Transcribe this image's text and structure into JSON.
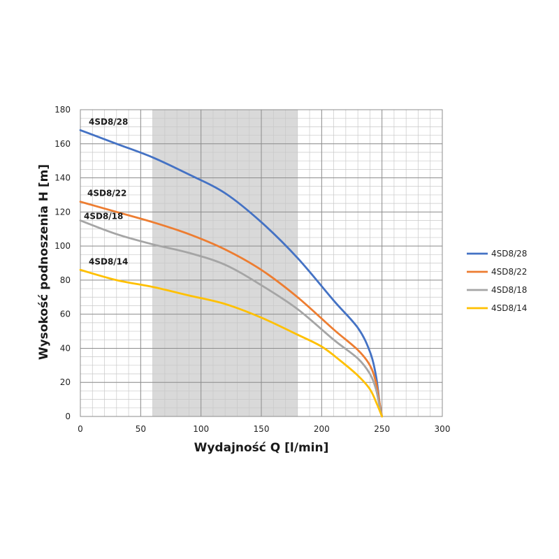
{
  "chart_data": {
    "type": "line",
    "xlabel": "Wydajność Q [l/min]",
    "ylabel": "Wysokość podnoszenia H [m]",
    "xlim": [
      0,
      300
    ],
    "ylim": [
      0,
      180
    ],
    "xticks": [
      0,
      50,
      100,
      150,
      200,
      250,
      300
    ],
    "yticks": [
      0,
      20,
      40,
      60,
      80,
      100,
      120,
      140,
      160,
      180
    ],
    "grid": true,
    "legend_position": "right",
    "highlight_band": {
      "x_from": 60,
      "x_to": 180,
      "color": "#d9d9d9"
    },
    "series": [
      {
        "name": "4SD8/28",
        "color": "#4472c4",
        "points": [
          [
            0,
            168
          ],
          [
            30,
            160
          ],
          [
            60,
            152
          ],
          [
            90,
            142
          ],
          [
            120,
            131
          ],
          [
            150,
            114
          ],
          [
            180,
            93
          ],
          [
            210,
            68
          ],
          [
            230,
            52
          ],
          [
            240,
            38
          ],
          [
            245,
            24
          ],
          [
            248,
            8
          ],
          [
            250,
            0
          ]
        ]
      },
      {
        "name": "4SD8/22",
        "color": "#ed7d31",
        "points": [
          [
            0,
            126
          ],
          [
            30,
            120
          ],
          [
            60,
            114
          ],
          [
            90,
            107
          ],
          [
            120,
            98
          ],
          [
            150,
            86
          ],
          [
            180,
            70
          ],
          [
            210,
            51
          ],
          [
            230,
            39
          ],
          [
            240,
            30
          ],
          [
            245,
            20
          ],
          [
            248,
            8
          ],
          [
            250,
            0
          ]
        ]
      },
      {
        "name": "4SD8/18",
        "color": "#a5a5a5",
        "points": [
          [
            0,
            115
          ],
          [
            30,
            107
          ],
          [
            60,
            101
          ],
          [
            90,
            96
          ],
          [
            120,
            89
          ],
          [
            150,
            77
          ],
          [
            180,
            63
          ],
          [
            210,
            45
          ],
          [
            230,
            34
          ],
          [
            240,
            25
          ],
          [
            245,
            16
          ],
          [
            248,
            6
          ],
          [
            250,
            0
          ]
        ]
      },
      {
        "name": "4SD8/14",
        "color": "#ffc000",
        "points": [
          [
            0,
            86
          ],
          [
            30,
            80
          ],
          [
            60,
            76
          ],
          [
            90,
            71
          ],
          [
            120,
            66
          ],
          [
            150,
            58
          ],
          [
            180,
            48
          ],
          [
            200,
            41
          ],
          [
            215,
            33
          ],
          [
            230,
            24
          ],
          [
            240,
            16
          ],
          [
            246,
            7
          ],
          [
            250,
            0
          ]
        ]
      }
    ],
    "curve_labels": [
      {
        "series": "4SD8/28",
        "text": "4SD8/28"
      },
      {
        "series": "4SD8/22",
        "text": "4SD8/22"
      },
      {
        "series": "4SD8/18",
        "text": "4SD8/18"
      },
      {
        "series": "4SD8/14",
        "text": "4SD8/14"
      }
    ]
  }
}
